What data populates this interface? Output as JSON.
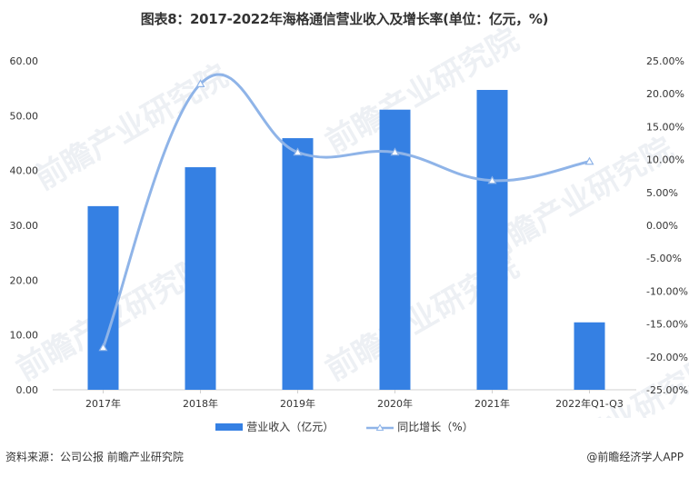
{
  "title": "图表8：2017-2022年海格通信营业收入及增长率(单位：亿元，%)",
  "chart_data": {
    "type": "bar+line",
    "title": "图表8：2017-2022年海格通信营业收入及增长率(单位：亿元，%)",
    "categories": [
      "2017年",
      "2018年",
      "2019年",
      "2020年",
      "2021年",
      "2022年Q1-Q3"
    ],
    "series": [
      {
        "name": "营业收入（亿元）",
        "type": "bar",
        "axis": "left",
        "color": "#3580e3",
        "values": [
          33.5,
          40.6,
          45.9,
          51.1,
          54.7,
          12.3
        ]
      },
      {
        "name": "同比增长（%）",
        "type": "line",
        "axis": "right",
        "color": "#8fb4e8",
        "marker": "triangle",
        "smooth": true,
        "values": [
          -18.6,
          21.5,
          11.1,
          11.1,
          6.8,
          9.7
        ]
      }
    ],
    "left_axis": {
      "ylim": [
        0,
        60
      ],
      "ticks": [
        "0.00",
        "10.00",
        "20.00",
        "30.00",
        "40.00",
        "50.00",
        "60.00"
      ]
    },
    "right_axis": {
      "ylim": [
        -25,
        25
      ],
      "ticks": [
        "-25.00%",
        "-20.00%",
        "-15.00%",
        "-10.00%",
        "-5.00%",
        "0.00%",
        "5.00%",
        "10.00%",
        "15.00%",
        "20.00%",
        "25.00%"
      ]
    },
    "grid": false,
    "legend_position": "bottom"
  },
  "legend": {
    "bar_label": "营业收入（亿元）",
    "line_label": "同比增长（%）"
  },
  "footer": {
    "source": "资料来源：公司公报 前瞻产业研究院",
    "credit": "@前瞻经济学人APP"
  },
  "watermark": "前瞻产业研究院",
  "colors": {
    "bar": "#3580e3",
    "line": "#8fb4e8",
    "axis": "#d0d0d0"
  }
}
